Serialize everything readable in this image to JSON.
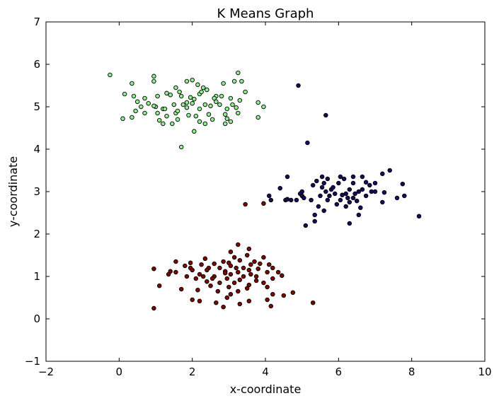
{
  "chart_data": {
    "type": "scatter",
    "title": "K Means Graph",
    "xlabel": "x-coordinate",
    "ylabel": "y-coordinate",
    "xlim": [
      -2,
      10
    ],
    "ylim": [
      -1,
      7
    ],
    "xticks": [
      -2,
      0,
      2,
      4,
      6,
      8,
      10
    ],
    "yticks": [
      -1,
      0,
      1,
      2,
      3,
      4,
      5,
      6,
      7
    ],
    "xtick_labels": [
      "−2",
      "0",
      "2",
      "4",
      "6",
      "8",
      "10"
    ],
    "ytick_labels": [
      "−1",
      "0",
      "1",
      "2",
      "3",
      "4",
      "5",
      "6",
      "7"
    ],
    "grid": false,
    "series": [
      {
        "color": "#90ee90",
        "points": [
          [
            -0.25,
            5.75
          ],
          [
            0.35,
            5.55
          ],
          [
            0.95,
            5.72
          ],
          [
            0.95,
            5.6
          ],
          [
            1.55,
            5.45
          ],
          [
            1.65,
            5.35
          ],
          [
            1.85,
            5.6
          ],
          [
            2.0,
            5.63
          ],
          [
            2.15,
            5.52
          ],
          [
            2.3,
            5.45
          ],
          [
            2.65,
            5.25
          ],
          [
            2.85,
            5.55
          ],
          [
            3.15,
            5.6
          ],
          [
            3.25,
            5.8
          ],
          [
            3.35,
            5.6
          ],
          [
            3.45,
            5.35
          ],
          [
            0.15,
            5.3
          ],
          [
            0.4,
            5.25
          ],
          [
            0.7,
            5.2
          ],
          [
            1.05,
            5.25
          ],
          [
            1.3,
            5.32
          ],
          [
            1.4,
            5.28
          ],
          [
            1.7,
            5.25
          ],
          [
            1.95,
            5.22
          ],
          [
            2.05,
            5.18
          ],
          [
            2.2,
            5.3
          ],
          [
            2.6,
            5.2
          ],
          [
            2.8,
            5.25
          ],
          [
            3.05,
            5.2
          ],
          [
            3.3,
            5.15
          ],
          [
            0.5,
            5.12
          ],
          [
            0.8,
            5.08
          ],
          [
            1.0,
            5.0
          ],
          [
            1.2,
            4.95
          ],
          [
            1.5,
            5.05
          ],
          [
            1.75,
            5.05
          ],
          [
            1.85,
            4.98
          ],
          [
            2.0,
            5.08
          ],
          [
            2.2,
            4.95
          ],
          [
            2.5,
            5.02
          ],
          [
            2.75,
            5.05
          ],
          [
            2.95,
            4.95
          ],
          [
            3.2,
            4.98
          ],
          [
            0.45,
            4.9
          ],
          [
            0.7,
            4.85
          ],
          [
            1.05,
            4.85
          ],
          [
            1.3,
            4.78
          ],
          [
            1.55,
            4.85
          ],
          [
            1.9,
            4.8
          ],
          [
            2.1,
            4.78
          ],
          [
            2.45,
            4.82
          ],
          [
            2.9,
            4.82
          ],
          [
            3.25,
            4.85
          ],
          [
            0.1,
            4.72
          ],
          [
            0.35,
            4.75
          ],
          [
            1.1,
            4.68
          ],
          [
            1.6,
            4.7
          ],
          [
            2.2,
            4.65
          ],
          [
            2.95,
            4.72
          ],
          [
            3.05,
            4.65
          ],
          [
            1.2,
            4.6
          ],
          [
            1.45,
            4.6
          ],
          [
            2.35,
            4.6
          ],
          [
            2.9,
            4.6
          ],
          [
            2.05,
            4.42
          ],
          [
            1.7,
            4.05
          ],
          [
            3.8,
            5.1
          ],
          [
            3.95,
            5.0
          ],
          [
            3.8,
            4.75
          ],
          [
            2.4,
            5.4
          ],
          [
            1.25,
            4.95
          ],
          [
            1.85,
            5.1
          ],
          [
            2.65,
            5.12
          ],
          [
            3.1,
            5.05
          ],
          [
            0.6,
            5.0
          ],
          [
            2.35,
            5.05
          ],
          [
            1.6,
            4.9
          ],
          [
            2.55,
            4.7
          ],
          [
            2.25,
            5.35
          ],
          [
            0.95,
            5.02
          ]
        ]
      },
      {
        "color": "#1a0a5a",
        "points": [
          [
            4.9,
            5.5
          ],
          [
            5.65,
            4.8
          ],
          [
            5.15,
            4.15
          ],
          [
            7.4,
            3.5
          ],
          [
            7.2,
            3.42
          ],
          [
            6.65,
            3.35
          ],
          [
            6.4,
            3.35
          ],
          [
            5.55,
            3.35
          ],
          [
            5.7,
            3.3
          ],
          [
            6.15,
            3.3
          ],
          [
            4.6,
            3.35
          ],
          [
            7.75,
            3.18
          ],
          [
            5.4,
            3.25
          ],
          [
            6.0,
            3.2
          ],
          [
            6.4,
            3.2
          ],
          [
            6.75,
            3.22
          ],
          [
            7.0,
            3.2
          ],
          [
            4.4,
            3.08
          ],
          [
            5.3,
            3.15
          ],
          [
            5.55,
            3.1
          ],
          [
            5.8,
            3.05
          ],
          [
            6.3,
            3.05
          ],
          [
            6.65,
            3.05
          ],
          [
            6.9,
            3.0
          ],
          [
            5.0,
            3.0
          ],
          [
            5.65,
            3.0
          ],
          [
            5.9,
            2.95
          ],
          [
            6.2,
            2.95
          ],
          [
            6.55,
            3.0
          ],
          [
            7.25,
            2.98
          ],
          [
            4.1,
            2.9
          ],
          [
            4.95,
            2.95
          ],
          [
            5.5,
            2.9
          ],
          [
            6.1,
            2.92
          ],
          [
            6.4,
            2.85
          ],
          [
            6.75,
            2.9
          ],
          [
            4.15,
            2.8
          ],
          [
            4.55,
            2.8
          ],
          [
            4.7,
            2.8
          ],
          [
            4.85,
            2.8
          ],
          [
            5.25,
            2.8
          ],
          [
            5.7,
            2.8
          ],
          [
            6.05,
            2.8
          ],
          [
            6.3,
            2.75
          ],
          [
            6.5,
            2.78
          ],
          [
            7.6,
            2.85
          ],
          [
            7.8,
            2.9
          ],
          [
            7.2,
            2.75
          ],
          [
            5.45,
            2.65
          ],
          [
            5.95,
            2.7
          ],
          [
            6.2,
            2.65
          ],
          [
            6.6,
            2.62
          ],
          [
            5.6,
            2.55
          ],
          [
            5.35,
            2.45
          ],
          [
            6.55,
            2.45
          ],
          [
            8.2,
            2.42
          ],
          [
            5.35,
            2.3
          ],
          [
            5.1,
            2.2
          ],
          [
            6.3,
            2.25
          ],
          [
            5.0,
            2.9
          ],
          [
            5.85,
            3.1
          ],
          [
            6.05,
            3.35
          ],
          [
            6.85,
            3.15
          ],
          [
            4.6,
            2.82
          ],
          [
            6.25,
            2.85
          ],
          [
            5.05,
            2.85
          ],
          [
            7.0,
            3.0
          ],
          [
            5.75,
            2.9
          ],
          [
            6.45,
            2.95
          ],
          [
            5.6,
            3.2
          ]
        ]
      },
      {
        "color": "#7a0a00",
        "points": [
          [
            3.25,
            1.75
          ],
          [
            3.55,
            1.65
          ],
          [
            3.05,
            1.58
          ],
          [
            3.5,
            1.5
          ],
          [
            3.95,
            1.45
          ],
          [
            3.15,
            1.45
          ],
          [
            2.35,
            1.42
          ],
          [
            2.85,
            1.35
          ],
          [
            3.3,
            1.38
          ],
          [
            3.7,
            1.35
          ],
          [
            1.55,
            1.35
          ],
          [
            1.95,
            1.32
          ],
          [
            2.25,
            1.28
          ],
          [
            3.0,
            1.32
          ],
          [
            3.6,
            1.28
          ],
          [
            3.85,
            1.3
          ],
          [
            4.1,
            1.28
          ],
          [
            1.95,
            1.2
          ],
          [
            2.45,
            1.2
          ],
          [
            2.75,
            1.2
          ],
          [
            3.05,
            1.25
          ],
          [
            3.4,
            1.2
          ],
          [
            3.55,
            1.15
          ],
          [
            3.8,
            1.18
          ],
          [
            4.2,
            1.2
          ],
          [
            0.95,
            1.18
          ],
          [
            1.4,
            1.12
          ],
          [
            2.0,
            1.15
          ],
          [
            2.4,
            1.15
          ],
          [
            2.9,
            1.12
          ],
          [
            3.25,
            1.1
          ],
          [
            3.6,
            1.05
          ],
          [
            4.05,
            1.1
          ],
          [
            4.35,
            1.1
          ],
          [
            1.55,
            1.1
          ],
          [
            2.2,
            1.05
          ],
          [
            2.6,
            1.0
          ],
          [
            3.05,
            1.05
          ],
          [
            3.4,
            1.0
          ],
          [
            3.75,
            1.0
          ],
          [
            4.45,
            1.02
          ],
          [
            1.35,
            1.05
          ],
          [
            1.85,
            1.0
          ],
          [
            2.1,
            0.95
          ],
          [
            2.55,
            0.95
          ],
          [
            2.95,
            0.95
          ],
          [
            3.3,
            0.92
          ],
          [
            3.75,
            0.9
          ],
          [
            4.2,
            0.95
          ],
          [
            2.4,
            0.88
          ],
          [
            2.75,
            0.85
          ],
          [
            3.15,
            0.85
          ],
          [
            3.55,
            0.8
          ],
          [
            3.95,
            0.85
          ],
          [
            1.1,
            0.78
          ],
          [
            2.5,
            0.78
          ],
          [
            3.0,
            0.75
          ],
          [
            3.5,
            0.72
          ],
          [
            4.05,
            0.75
          ],
          [
            1.7,
            0.7
          ],
          [
            2.15,
            0.68
          ],
          [
            2.7,
            0.65
          ],
          [
            3.25,
            0.65
          ],
          [
            4.75,
            0.62
          ],
          [
            3.05,
            0.58
          ],
          [
            4.2,
            0.58
          ],
          [
            4.5,
            0.55
          ],
          [
            2.95,
            0.5
          ],
          [
            2.0,
            0.45
          ],
          [
            2.2,
            0.42
          ],
          [
            3.55,
            0.42
          ],
          [
            4.05,
            0.45
          ],
          [
            2.65,
            0.38
          ],
          [
            3.3,
            0.35
          ],
          [
            4.15,
            0.3
          ],
          [
            2.85,
            0.28
          ],
          [
            5.3,
            0.38
          ],
          [
            0.95,
            0.25
          ],
          [
            3.45,
            2.7
          ],
          [
            3.95,
            2.72
          ],
          [
            2.3,
            1.0
          ],
          [
            2.9,
            1.08
          ],
          [
            3.2,
            1.2
          ],
          [
            2.6,
            1.3
          ],
          [
            1.8,
            1.25
          ]
        ]
      }
    ]
  }
}
